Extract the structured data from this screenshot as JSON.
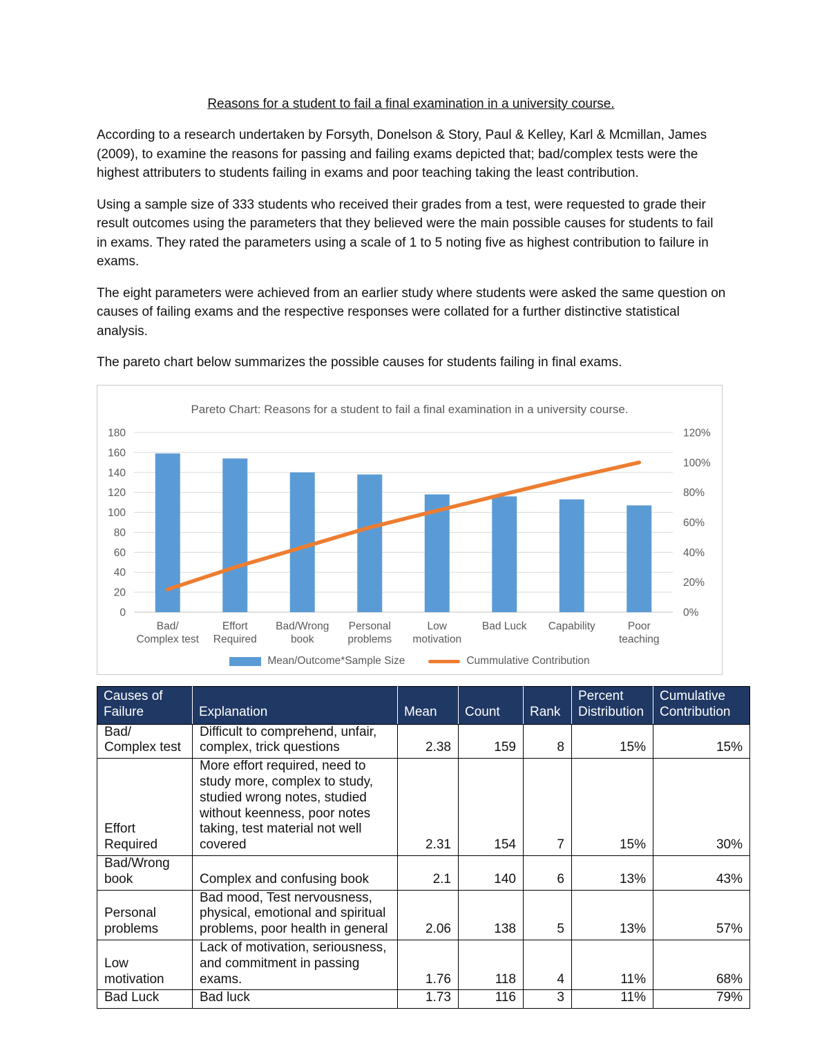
{
  "document": {
    "title": "Reasons for a student to fail a final examination in a university course.",
    "paragraphs": [
      "According to a research undertaken by Forsyth, Donelson & Story, Paul & Kelley, Karl & Mcmillan, James (2009), to examine the reasons for passing and failing exams depicted that; bad/complex tests were the highest attributers to students failing in exams and poor teaching taking the least contribution.",
      "Using a sample size of 333 students who received their grades from a test, were requested to grade their result outcomes using the parameters that they believed were the main possible causes for students to fail in exams. They rated the parameters using a scale of 1 to 5 noting five as highest contribution to failure in exams.",
      "The eight parameters were achieved from an earlier study where students were asked the same question on causes of failing exams and the respective responses were collated for a further distinctive statistical analysis.",
      "The pareto chart below summarizes the possible causes for students failing in final exams."
    ]
  },
  "chart_data": {
    "type": "bar",
    "subtype": "pareto",
    "title": "Pareto Chart: Reasons for a student to fail a final examination in a university course.",
    "categories": [
      "Bad/ Complex test",
      "Effort Required",
      "Bad/Wrong book",
      "Personal problems",
      "Low motivation",
      "Bad Luck",
      "Capability",
      "Poor teaching"
    ],
    "category_lines": [
      [
        "Bad/",
        "Complex test"
      ],
      [
        "Effort",
        "Required"
      ],
      [
        "Bad/Wrong",
        "book"
      ],
      [
        "Personal",
        "problems"
      ],
      [
        "Low",
        "motivation"
      ],
      [
        "Bad Luck"
      ],
      [
        "Capability"
      ],
      [
        "Poor",
        "teaching"
      ]
    ],
    "series": [
      {
        "name": "Mean/Outcome*Sample Size",
        "type": "bar",
        "axis": "left",
        "color": "#5B9BD5",
        "values": [
          159,
          154,
          140,
          138,
          118,
          116,
          113,
          107
        ]
      },
      {
        "name": "Cummulative Contribution",
        "type": "line",
        "axis": "right",
        "color": "#ED7D31",
        "values": [
          15.2,
          30.0,
          43.3,
          56.6,
          67.8,
          78.9,
          89.8,
          100
        ]
      }
    ],
    "left_axis": {
      "min": 0,
      "max": 180,
      "step": 20,
      "ticks": [
        "0",
        "20",
        "40",
        "60",
        "80",
        "100",
        "120",
        "140",
        "160",
        "180"
      ]
    },
    "right_axis": {
      "min": 0,
      "max": 120,
      "step": 20,
      "ticks": [
        "0%",
        "20%",
        "40%",
        "60%",
        "80%",
        "100%",
        "120%"
      ],
      "suffix": "%"
    },
    "grid": true,
    "legend_position": "bottom",
    "text_color": "#595959",
    "grid_color": "#D9D9D9",
    "axis_line_color": "#BFBFBF"
  },
  "table": {
    "header_bg": "#1F3864",
    "columns": [
      "Causes of Failure",
      "Explanation",
      "Mean",
      "Count",
      "Rank",
      "Percent Distribution",
      "Cumulative Contribution"
    ],
    "rows": [
      [
        "Bad/ Complex test",
        "Difficult to comprehend, unfair, complex, trick questions",
        "2.38",
        "159",
        "8",
        "15%",
        "15%"
      ],
      [
        "Effort Required",
        "More effort required, need to study more, complex to study, studied wrong notes, studied without keenness, poor notes taking, test material not well covered",
        "2.31",
        "154",
        "7",
        "15%",
        "30%"
      ],
      [
        "Bad/Wrong book",
        "Complex and confusing book",
        "2.1",
        "140",
        "6",
        "13%",
        "43%"
      ],
      [
        "Personal problems",
        "Bad mood, Test nervousness, physical, emotional and spiritual problems, poor health in general",
        "2.06",
        "138",
        "5",
        "13%",
        "57%"
      ],
      [
        "Low motivation",
        "Lack of motivation, seriousness, and commitment in passing exams.",
        "1.76",
        "118",
        "4",
        "11%",
        "68%"
      ],
      [
        "Bad Luck",
        "Bad luck",
        "1.73",
        "116",
        "3",
        "11%",
        "79%"
      ]
    ]
  }
}
